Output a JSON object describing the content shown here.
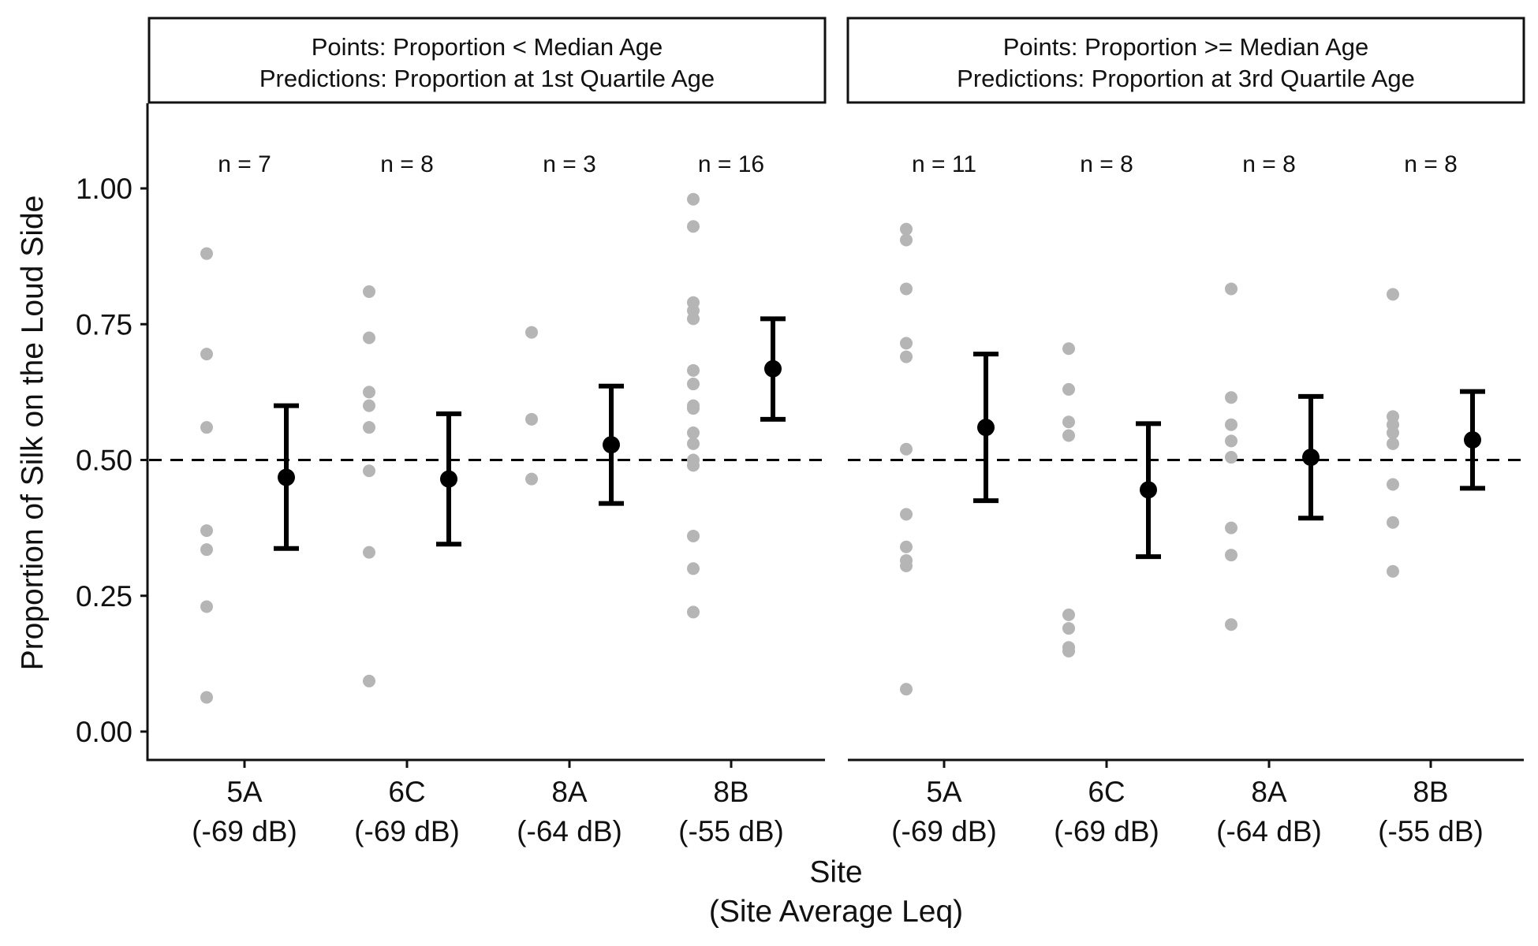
{
  "chart_data": {
    "type": "scatter",
    "ylabel": "Proportion of Silk on the Loud Side",
    "xlabel_line1": "Site",
    "xlabel_line2": "(Site Average Leq)",
    "ylim": [
      -0.05,
      1.15
    ],
    "yticks": [
      0.0,
      0.25,
      0.5,
      0.75,
      1.0
    ],
    "ytick_labels": [
      "0.00",
      "0.25",
      "0.50",
      "0.75",
      "1.00"
    ],
    "reference_line": {
      "y": 0.5,
      "style": "dashed"
    },
    "grid": false,
    "categories": [
      {
        "site": "5A",
        "leq": "(-69 dB)"
      },
      {
        "site": "6C",
        "leq": "(-69 dB)"
      },
      {
        "site": "8A",
        "leq": "(-64 dB)"
      },
      {
        "site": "8B",
        "leq": "(-55 dB)"
      }
    ],
    "colors": {
      "points": "#b5b5b5",
      "predictions": "#000000"
    },
    "panels": [
      {
        "strip_line1": "Points: Proportion < Median Age",
        "strip_line2": "Predictions: Proportion at 1st Quartile Age",
        "n_labels": [
          "n =  7",
          "n =  8",
          "n =  3",
          "n =  16"
        ],
        "points": [
          [
            0.88,
            0.695,
            0.56,
            0.37,
            0.335,
            0.23,
            0.063
          ],
          [
            0.81,
            0.725,
            0.625,
            0.6,
            0.56,
            0.48,
            0.33,
            0.093
          ],
          [
            0.735,
            0.575,
            0.465
          ],
          [
            0.98,
            0.93,
            0.79,
            0.775,
            0.76,
            0.665,
            0.64,
            0.6,
            0.595,
            0.55,
            0.53,
            0.5,
            0.49,
            0.36,
            0.3,
            0.22
          ]
        ],
        "predictions": [
          {
            "estimate": 0.468,
            "lower": 0.337,
            "upper": 0.6
          },
          {
            "estimate": 0.465,
            "lower": 0.345,
            "upper": 0.585
          },
          {
            "estimate": 0.528,
            "lower": 0.42,
            "upper": 0.636
          },
          {
            "estimate": 0.668,
            "lower": 0.575,
            "upper": 0.76
          }
        ]
      },
      {
        "strip_line1": "Points: Proportion >= Median Age",
        "strip_line2": "Predictions: Proportion at 3rd Quartile Age",
        "n_labels": [
          "n =  11",
          "n =  8",
          "n =  8",
          "n =  8"
        ],
        "points": [
          [
            0.925,
            0.905,
            0.815,
            0.715,
            0.69,
            0.52,
            0.4,
            0.34,
            0.315,
            0.305,
            0.078
          ],
          [
            0.705,
            0.63,
            0.57,
            0.545,
            0.215,
            0.19,
            0.155,
            0.148
          ],
          [
            0.815,
            0.615,
            0.565,
            0.535,
            0.505,
            0.375,
            0.325,
            0.197
          ],
          [
            0.805,
            0.58,
            0.565,
            0.55,
            0.53,
            0.455,
            0.385,
            0.295
          ]
        ],
        "predictions": [
          {
            "estimate": 0.56,
            "lower": 0.425,
            "upper": 0.695
          },
          {
            "estimate": 0.445,
            "lower": 0.322,
            "upper": 0.567
          },
          {
            "estimate": 0.505,
            "lower": 0.393,
            "upper": 0.617
          },
          {
            "estimate": 0.537,
            "lower": 0.448,
            "upper": 0.626
          }
        ]
      }
    ]
  }
}
